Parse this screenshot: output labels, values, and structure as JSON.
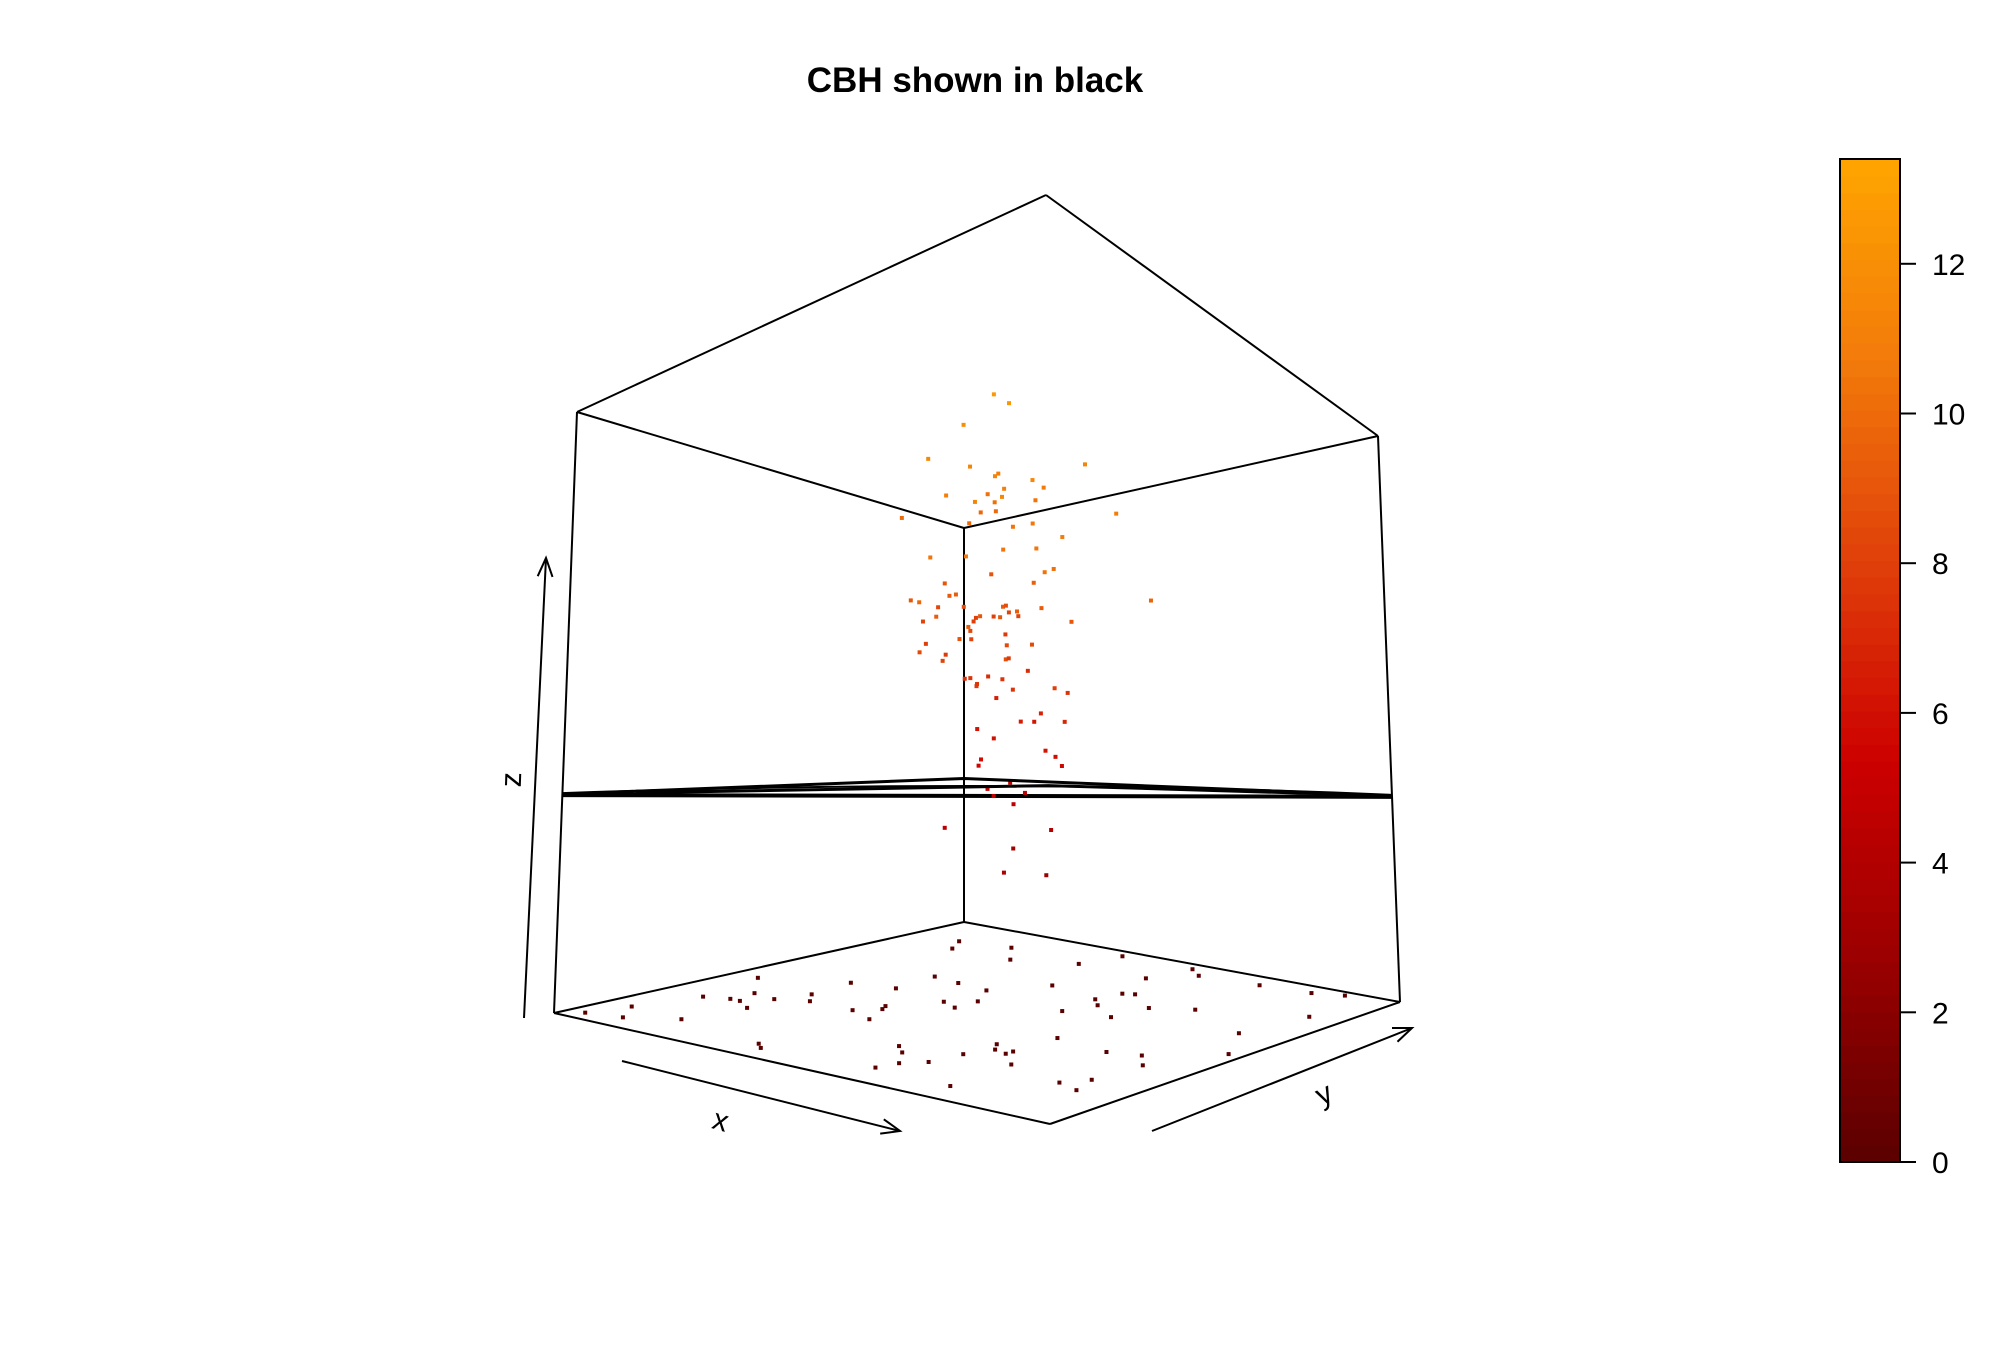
{
  "chart_data": {
    "type": "scatter",
    "title": "CBH shown in black",
    "xlabel": "x",
    "ylabel": "y",
    "zlabel": "z",
    "colorbar": {
      "ticks": [
        "0",
        "2",
        "4",
        "6",
        "8",
        "10",
        "12"
      ],
      "tick_values": [
        0,
        2,
        4,
        6,
        8,
        10,
        12
      ],
      "range": [
        0,
        13.4
      ],
      "palette": [
        "#5a0000",
        "#9a0000",
        "#cc0000",
        "#e0400a",
        "#f27a0a",
        "#ffa500"
      ]
    },
    "cbh_plane": {
      "color": "#000000",
      "z": 5.1
    },
    "projected_points": [
      [
        0.11,
        0.27
      ],
      [
        0.32,
        0.31
      ],
      [
        0.2,
        0.43
      ],
      [
        0.63,
        0.34
      ],
      [
        0.86,
        0.29
      ],
      [
        0.69,
        0.64
      ],
      [
        0.65,
        0.08
      ],
      [
        0.91,
        0.06
      ],
      [
        0.82,
        0.52
      ],
      [
        0.67,
        0.43
      ],
      [
        0.07,
        0.83
      ],
      [
        0.32,
        0.33
      ],
      [
        0.37,
        0.35
      ],
      [
        0.41,
        0.94
      ],
      [
        0.9,
        0.88
      ],
      [
        0.41,
        0.77
      ],
      [
        0.56,
        0.73
      ],
      [
        0.78,
        0.37
      ],
      [
        0.45,
        0.2
      ],
      [
        0.11,
        0.98
      ],
      [
        0.34,
        0.62
      ],
      [
        0.28,
        0.95
      ],
      [
        0.95,
        0.13
      ],
      [
        0.32,
        0.45
      ],
      [
        0.1,
        0.4
      ],
      [
        0.81,
        0.41
      ],
      [
        0.66,
        0.41
      ],
      [
        0.43,
        0.76
      ],
      [
        0.45,
        0.97
      ],
      [
        0.61,
        0.97
      ],
      [
        0.97,
        0.04
      ],
      [
        0.95,
        0.44
      ],
      [
        0.44,
        0.7
      ],
      [
        0.62,
        0.52
      ],
      [
        0.92,
        0.27
      ],
      [
        0.41,
        0.67
      ],
      [
        0.26,
        0.75
      ],
      [
        0.63,
        0.06
      ],
      [
        0.62,
        0.63
      ],
      [
        0.27,
        0.26
      ],
      [
        0.47,
        0.87
      ],
      [
        0.35,
        0.32
      ],
      [
        0.09,
        0.2
      ],
      [
        0.38,
        0.18
      ],
      [
        0.84,
        0.12
      ],
      [
        0.75,
        0.65
      ],
      [
        0.26,
        0.08
      ],
      [
        0.17,
        0.96
      ],
      [
        0.83,
        0.34
      ],
      [
        0.82,
        0.26
      ],
      [
        0.14,
        0.45
      ],
      [
        0.03,
        0.55
      ],
      [
        0.58,
        0.5
      ],
      [
        0.14,
        0.22
      ],
      [
        0.58,
        0.56
      ],
      [
        0.87,
        0.83
      ],
      [
        0.41,
        0.14
      ],
      [
        0.63,
        0.88
      ],
      [
        0.74,
        0.54
      ],
      [
        0.33,
        0.71
      ],
      [
        0.69,
        0.37
      ],
      [
        0.88,
        0.35
      ],
      [
        0.1,
        0.67
      ],
      [
        0.43,
        0.6
      ],
      [
        0.8,
        0.9
      ],
      [
        0.42,
        0.09
      ],
      [
        0.48,
        0.23
      ],
      [
        0.88,
        0.29
      ],
      [
        0.74,
        0.83
      ],
      [
        0.37,
        0.26
      ]
    ],
    "canopy_points": [
      [
        0.32,
        0.28,
        12.6
      ],
      [
        0.31,
        0.31,
        12.5
      ],
      [
        0.34,
        0.22,
        11.9
      ],
      [
        0.44,
        0.25,
        11.6
      ],
      [
        0.36,
        0.44,
        11.5
      ],
      [
        0.46,
        0.48,
        11.5
      ],
      [
        0.38,
        0.29,
        11.4
      ],
      [
        0.38,
        0.36,
        11.4
      ],
      [
        0.22,
        0.41,
        11.4
      ],
      [
        0.48,
        0.43,
        11.3
      ],
      [
        0.36,
        0.36,
        11.1
      ],
      [
        0.44,
        0.3,
        11.0
      ],
      [
        0.28,
        0.24,
        10.9
      ],
      [
        0.43,
        0.61,
        10.9
      ],
      [
        0.26,
        0.55,
        10.9
      ],
      [
        0.25,
        0.33,
        10.8
      ],
      [
        0.36,
        0.44,
        10.6
      ],
      [
        0.59,
        0.54,
        10.6
      ],
      [
        0.38,
        0.41,
        10.5
      ],
      [
        0.62,
        0.48,
        10.5
      ],
      [
        0.49,
        0.52,
        10.5
      ],
      [
        0.44,
        0.55,
        10.5
      ],
      [
        0.52,
        0.67,
        10.4
      ],
      [
        0.23,
        0.28,
        10.4
      ],
      [
        0.25,
        0.17,
        10.3
      ],
      [
        0.45,
        0.61,
        10.2
      ],
      [
        0.25,
        0.19,
        10.2
      ],
      [
        0.24,
        0.18,
        10.0
      ],
      [
        0.32,
        0.21,
        10.0
      ],
      [
        0.38,
        0.1,
        10.0
      ],
      [
        0.72,
        0.57,
        9.8
      ],
      [
        0.22,
        0.11,
        9.8
      ],
      [
        0.36,
        0.77,
        9.7
      ],
      [
        0.39,
        0.48,
        9.5
      ],
      [
        0.53,
        0.44,
        9.4
      ],
      [
        0.54,
        0.58,
        9.4
      ],
      [
        0.55,
        0.63,
        9.4
      ],
      [
        0.69,
        0.58,
        9.4
      ],
      [
        0.72,
        0.7,
        9.4
      ],
      [
        0.47,
        0.6,
        9.3
      ],
      [
        0.52,
        0.41,
        9.3
      ],
      [
        0.54,
        0.33,
        9.1
      ],
      [
        0.53,
        0.56,
        9.1
      ],
      [
        0.46,
        0.67,
        9.1
      ],
      [
        0.55,
        0.53,
        9.1
      ],
      [
        0.38,
        0.22,
        9.0
      ],
      [
        0.25,
        0.18,
        8.9
      ],
      [
        0.68,
        0.63,
        8.9
      ],
      [
        0.73,
        0.81,
        8.7
      ],
      [
        0.37,
        0.26,
        8.6
      ],
      [
        0.31,
        0.3,
        8.6
      ],
      [
        0.54,
        0.59,
        8.5
      ],
      [
        0.5,
        0.61,
        8.5
      ],
      [
        0.71,
        0.56,
        8.5
      ],
      [
        0.45,
        0.38,
        8.4
      ],
      [
        0.31,
        0.11,
        8.3
      ],
      [
        0.38,
        0.16,
        8.2
      ],
      [
        0.23,
        0.23,
        8.2
      ],
      [
        0.22,
        0.19,
        8.2
      ],
      [
        0.44,
        0.37,
        8.2
      ],
      [
        0.65,
        0.55,
        8.2
      ],
      [
        0.26,
        0.15,
        8.1
      ],
      [
        0.23,
        0.16,
        8.1
      ],
      [
        0.25,
        0.13,
        8.0
      ],
      [
        0.67,
        0.87,
        7.9
      ],
      [
        0.42,
        0.22,
        7.9
      ],
      [
        0.22,
        0.18,
        7.8
      ],
      [
        0.44,
        0.3,
        7.8
      ],
      [
        0.39,
        0.41,
        7.8
      ],
      [
        0.71,
        0.71,
        7.8
      ],
      [
        0.59,
        0.57,
        7.6
      ],
      [
        0.49,
        0.43,
        7.5
      ],
      [
        0.46,
        0.48,
        7.5
      ],
      [
        0.56,
        0.63,
        7.5
      ],
      [
        0.52,
        0.73,
        7.5
      ],
      [
        0.21,
        0.23,
        7.2
      ],
      [
        0.31,
        0.25,
        7.2
      ],
      [
        0.36,
        0.25,
        7.2
      ],
      [
        0.63,
        0.85,
        6.9
      ],
      [
        0.44,
        0.56,
        6.8
      ],
      [
        0.18,
        0.1,
        6.6
      ],
      [
        0.38,
        0.43,
        6.5
      ],
      [
        0.13,
        0.14,
        6.2
      ],
      [
        0.71,
        0.89,
        6.1
      ],
      [
        0.22,
        0.1,
        6.1
      ],
      [
        0.26,
        0.2,
        6.0
      ],
      [
        0.6,
        0.79,
        5.9
      ],
      [
        0.64,
        0.64,
        5.8
      ],
      [
        0.48,
        0.44,
        5.6
      ],
      [
        0.37,
        0.53,
        5.6
      ],
      [
        0.81,
        0.91,
        5.1
      ],
      [
        0.35,
        0.3,
        5.1
      ],
      [
        0.67,
        0.79,
        4.9
      ],
      [
        0.57,
        0.59,
        4.9
      ],
      [
        0.67,
        0.76,
        4.6
      ],
      [
        0.31,
        0.13,
        4.4
      ],
      [
        0.56,
        0.73,
        4.0
      ],
      [
        0.15,
        0.08,
        3.7
      ],
      [
        0.75,
        0.85,
        3.2
      ],
      [
        0.58,
        0.74,
        2.8
      ]
    ],
    "xlim": [
      0,
      1
    ],
    "ylim": [
      0,
      1
    ],
    "zlim": [
      0,
      14
    ],
    "grid": false,
    "legend": "colorbar-right"
  }
}
